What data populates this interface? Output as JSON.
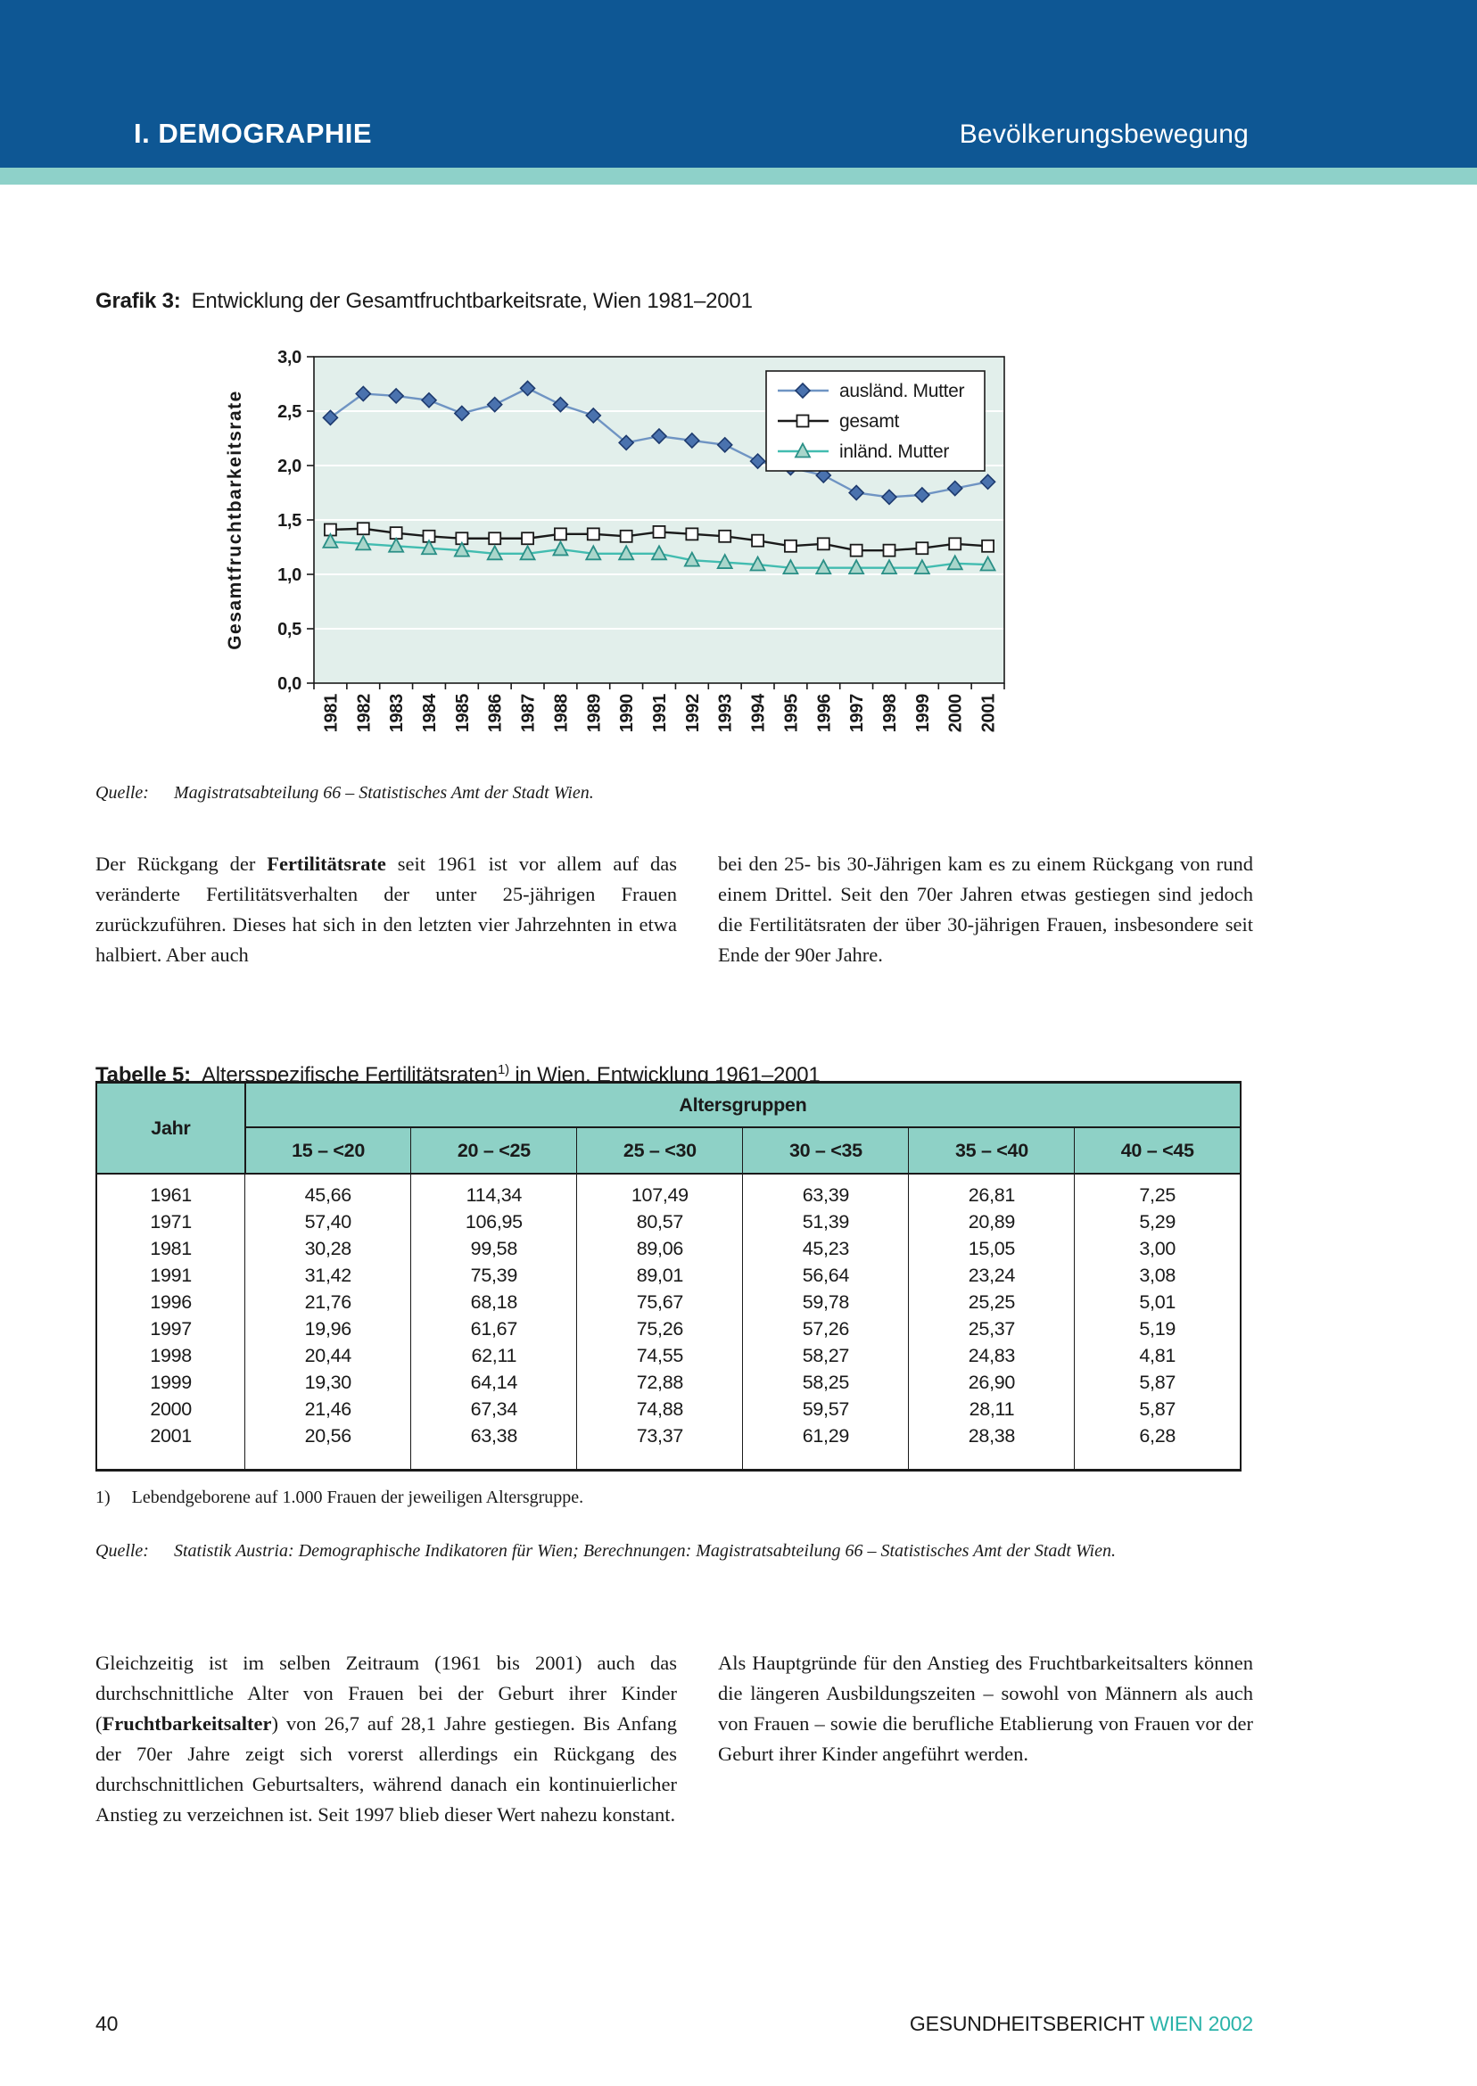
{
  "header": {
    "section": "I. DEMOGRAPHIE",
    "chapter": "Bevölkerungsbewegung"
  },
  "figure": {
    "label": "Grafik 3:",
    "title": "Entwicklung der Gesamtfruchtbarkeitsrate, Wien 1981–2001",
    "source_label": "Quelle:",
    "source": "Magistratsabteilung 66 – Statistisches Amt der Stadt Wien."
  },
  "chart_data": {
    "type": "line",
    "title": "Entwicklung der Gesamtfruchtbarkeitsrate, Wien 1981–2001",
    "xlabel": "",
    "ylabel": "Gesamtfruchtbarkeitsrate",
    "ylim": [
      0.0,
      3.0
    ],
    "ytick_step": 0.5,
    "ytick_labels": [
      "0,0",
      "0,5",
      "1,0",
      "1,5",
      "2,0",
      "2,5",
      "3,0"
    ],
    "grid": "horizontal-white",
    "plot_bg": "#e2efeb",
    "legend_position": "top-right",
    "x": [
      1981,
      1982,
      1983,
      1984,
      1985,
      1986,
      1987,
      1988,
      1989,
      1990,
      1991,
      1992,
      1993,
      1994,
      1995,
      1996,
      1997,
      1998,
      1999,
      2000,
      2001
    ],
    "series": [
      {
        "name": "ausländ. Mutter",
        "marker": "diamond",
        "line_color": "#6f94c3",
        "marker_fill": "#4a72ae",
        "marker_stroke": "#1d3a6e",
        "values": [
          2.44,
          2.66,
          2.64,
          2.6,
          2.48,
          2.56,
          2.71,
          2.56,
          2.46,
          2.21,
          2.27,
          2.23,
          2.19,
          2.04,
          1.98,
          1.91,
          1.75,
          1.71,
          1.73,
          1.79,
          1.85
        ]
      },
      {
        "name": "gesamt",
        "marker": "square",
        "line_color": "#1a1a1a",
        "marker_fill": "#ffffff",
        "marker_stroke": "#1a1a1a",
        "values": [
          1.41,
          1.42,
          1.38,
          1.35,
          1.33,
          1.33,
          1.33,
          1.37,
          1.37,
          1.35,
          1.39,
          1.37,
          1.35,
          1.31,
          1.26,
          1.28,
          1.22,
          1.22,
          1.24,
          1.28,
          1.26
        ]
      },
      {
        "name": "inländ. Mutter",
        "marker": "triangle",
        "line_color": "#42bcb0",
        "marker_fill": "#a9d6cb",
        "marker_stroke": "#2a8f86",
        "values": [
          1.3,
          1.28,
          1.26,
          1.24,
          1.22,
          1.19,
          1.19,
          1.23,
          1.19,
          1.19,
          1.19,
          1.13,
          1.11,
          1.09,
          1.06,
          1.06,
          1.06,
          1.06,
          1.06,
          1.1,
          1.09
        ]
      }
    ]
  },
  "paragraphs": {
    "p1_pre": "Der Rückgang der ",
    "p1_bold": "Fertilitätsrate",
    "p1_post": " seit 1961 ist vor allem auf das veränderte Fertilitätsverhalten der unter 25-jährigen Frauen zurückzuführen. Dieses hat sich in den letzten vier Jahrzehnten in etwa halbiert. Aber auch",
    "p2": "bei den 25- bis 30-Jährigen kam es zu einem Rückgang von rund einem Drittel. Seit den 70er Jahren etwas gestiegen sind jedoch die Fertilitätsraten der über 30-jährigen Frauen, insbesondere seit Ende der 90er Jahre.",
    "p3_pre": "Gleichzeitig ist im selben Zeitraum (1961 bis 2001) auch das durchschnittliche Alter von Frauen bei der Geburt ihrer Kinder (",
    "p3_bold": "Fruchtbarkeitsalter",
    "p3_post": ") von 26,7 auf 28,1 Jahre gestiegen. Bis Anfang der 70er Jahre zeigt sich vorerst allerdings ein Rückgang des durchschnittlichen Geburtsalters, während danach ein kontinuierlicher Anstieg zu verzeichnen ist. Seit 1997 blieb dieser Wert nahezu konstant.",
    "p4": "Als Hauptgründe für den Anstieg des Fruchtbarkeitsalters können die längeren Ausbildungszeiten – sowohl von Männern als auch von Frauen – sowie die berufliche Etablierung von Frauen vor der Geburt ihrer Kinder angeführt werden."
  },
  "table": {
    "label": "Tabelle 5:",
    "title_pre": "Altersspezifische Fertilitätsraten",
    "title_sup": "1)",
    "title_post": " in Wien, Entwicklung 1961–2001",
    "col_jahr": "Jahr",
    "group_header": "Altersgruppen",
    "age_groups": [
      "15 – <20",
      "20 – <25",
      "25 – <30",
      "30 – <35",
      "35 – <40",
      "40 – <45"
    ],
    "rows": [
      [
        "1961",
        "45,66",
        "114,34",
        "107,49",
        "63,39",
        "26,81",
        "7,25"
      ],
      [
        "1971",
        "57,40",
        "106,95",
        "80,57",
        "51,39",
        "20,89",
        "5,29"
      ],
      [
        "1981",
        "30,28",
        "99,58",
        "89,06",
        "45,23",
        "15,05",
        "3,00"
      ],
      [
        "1991",
        "31,42",
        "75,39",
        "89,01",
        "56,64",
        "23,24",
        "3,08"
      ],
      [
        "1996",
        "21,76",
        "68,18",
        "75,67",
        "59,78",
        "25,25",
        "5,01"
      ],
      [
        "1997",
        "19,96",
        "61,67",
        "75,26",
        "57,26",
        "25,37",
        "5,19"
      ],
      [
        "1998",
        "20,44",
        "62,11",
        "74,55",
        "58,27",
        "24,83",
        "4,81"
      ],
      [
        "1999",
        "19,30",
        "64,14",
        "72,88",
        "58,25",
        "26,90",
        "5,87"
      ],
      [
        "2000",
        "21,46",
        "67,34",
        "74,88",
        "59,57",
        "28,11",
        "5,87"
      ],
      [
        "2001",
        "20,56",
        "63,38",
        "73,37",
        "61,29",
        "28,38",
        "6,28"
      ]
    ],
    "footnote_num": "1)",
    "footnote": "Lebendgeborene auf 1.000 Frauen der jeweiligen Altersgruppe.",
    "source_label": "Quelle:",
    "source": "Statistik Austria: Demographische Indikatoren für Wien; Berechnungen: Magistratsabteilung 66 – Statistisches Amt der Stadt Wien."
  },
  "footer": {
    "page_number": "40",
    "report": "GESUNDHEITSBERICHT ",
    "report_highlight": "WIEN 2002"
  },
  "colors": {
    "header_blue": "#0e5794",
    "teal_strip": "#8ed1c9",
    "table_header_teal": "#8ed1c6",
    "chart_bg": "#e2efeb",
    "footer_teal": "#2ab3a9"
  }
}
